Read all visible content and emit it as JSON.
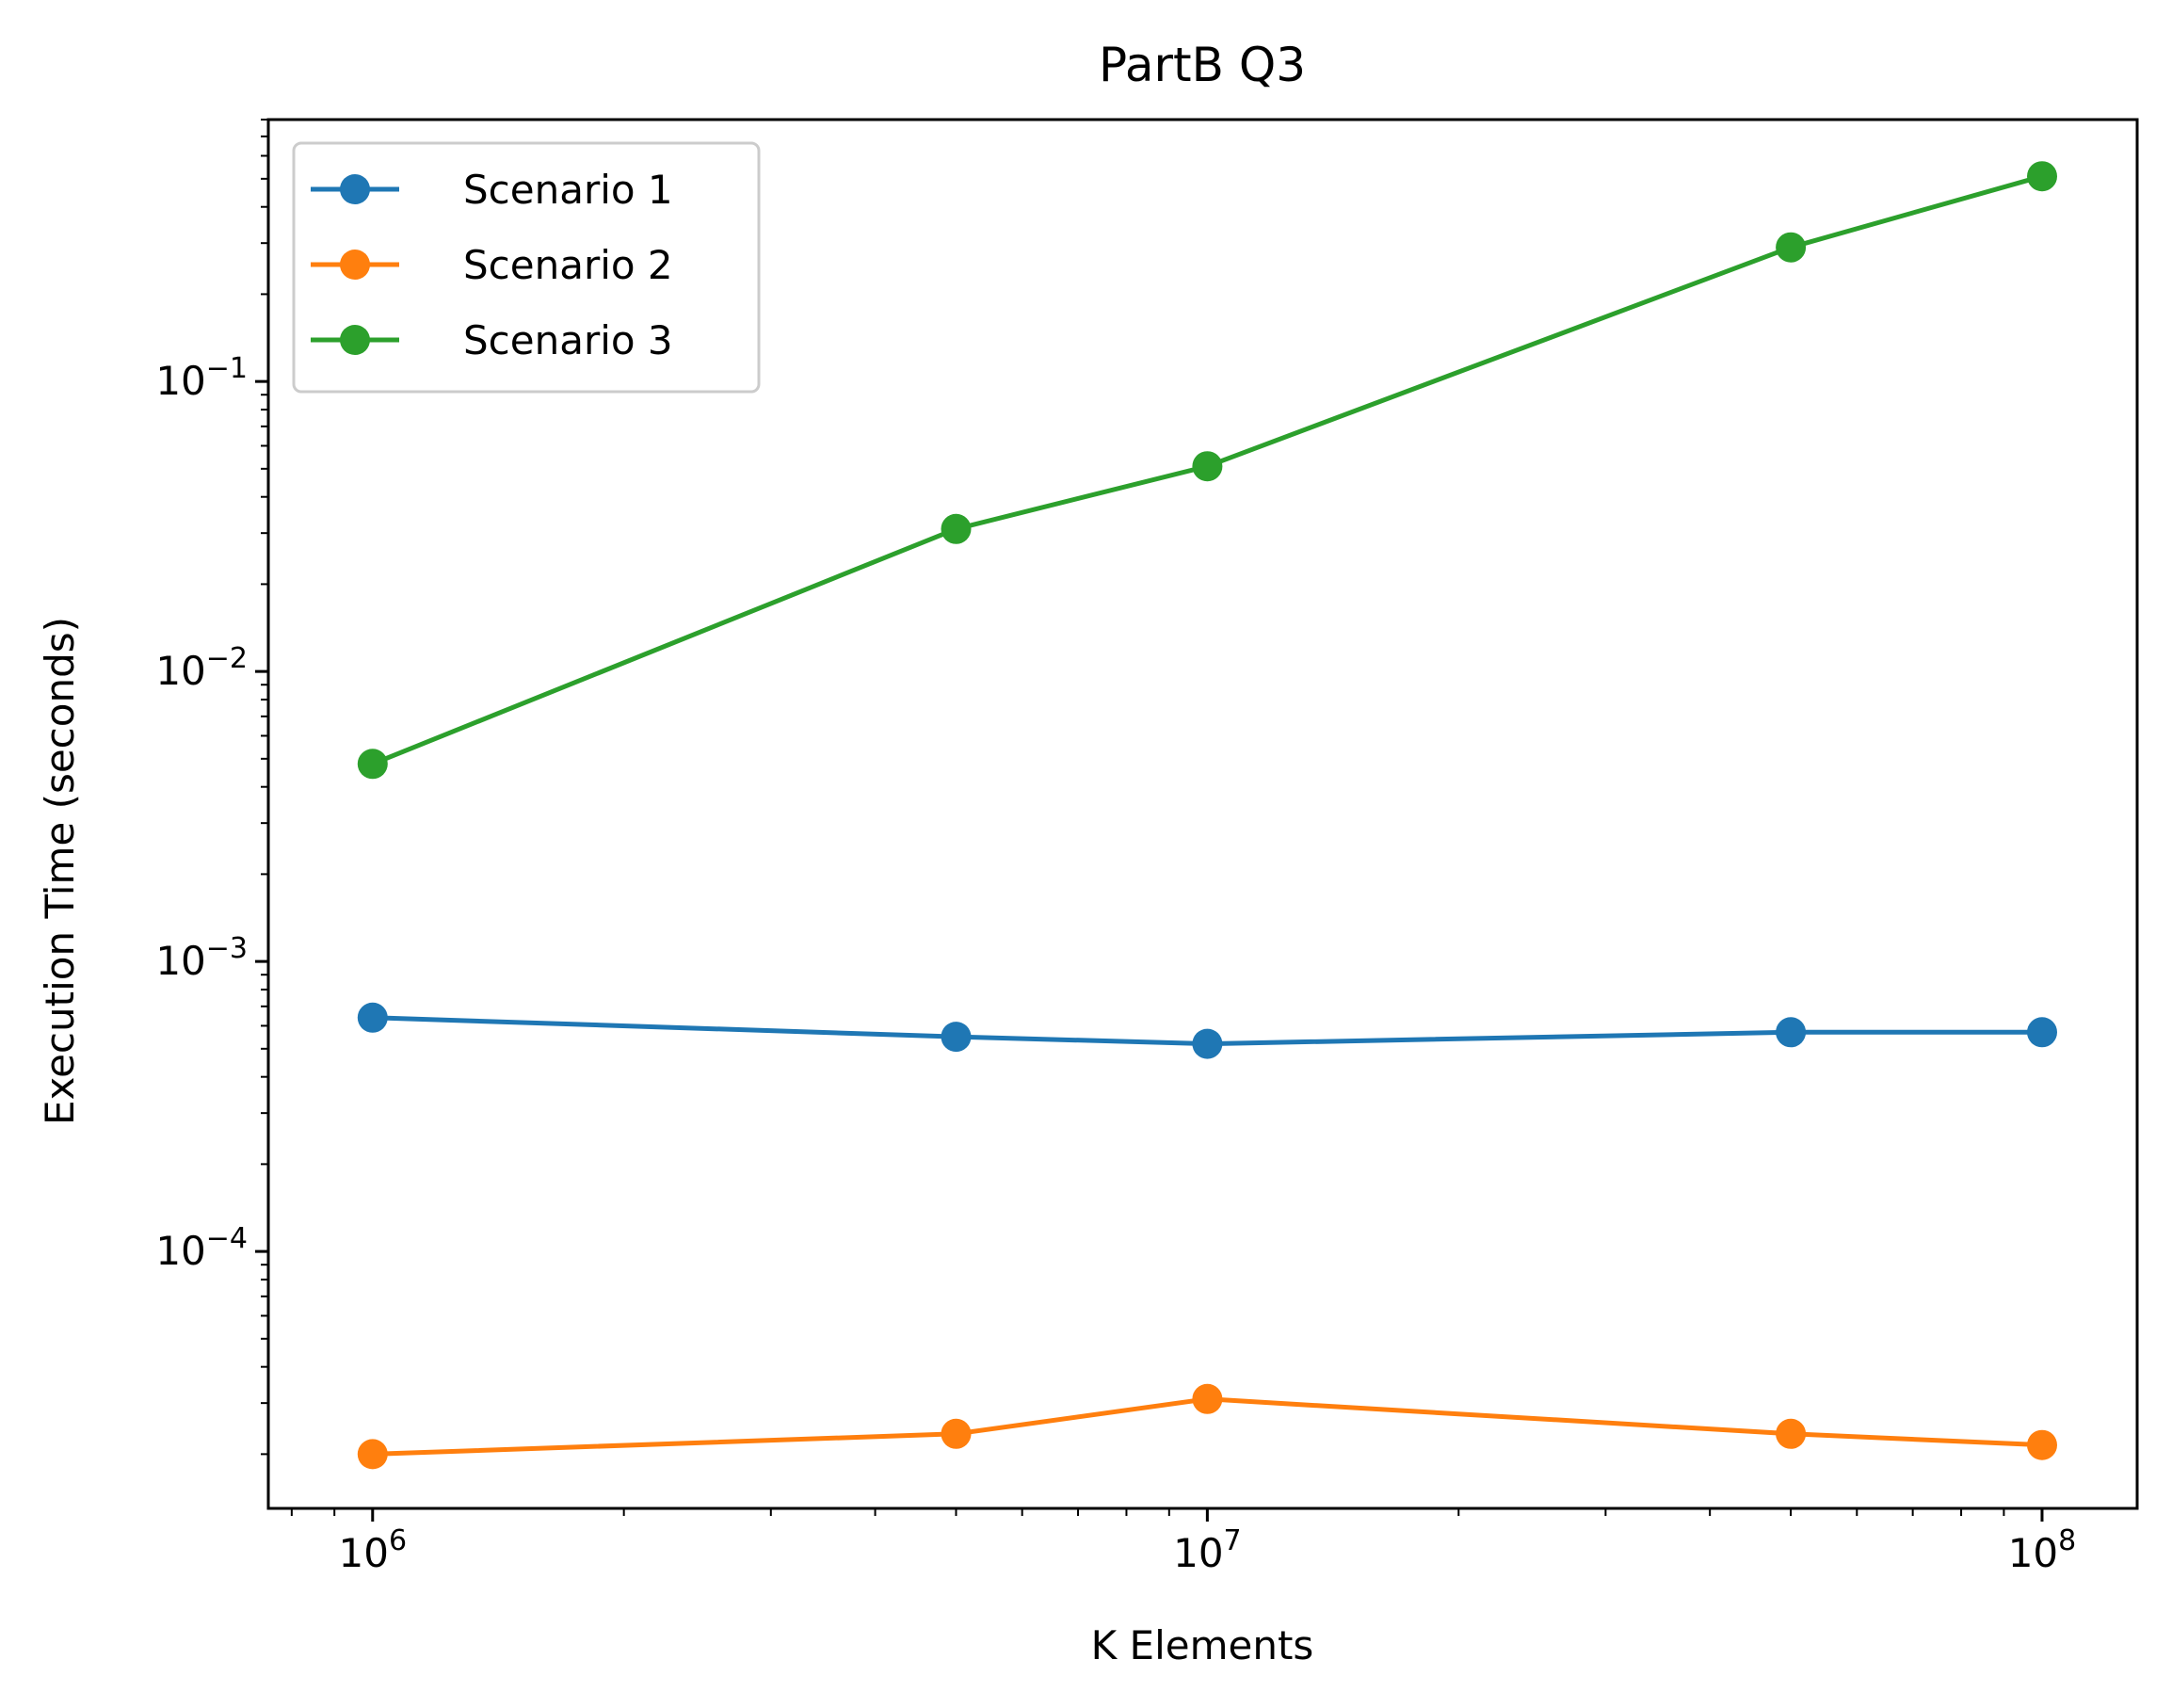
{
  "chart_data": {
    "type": "line",
    "title": "PartB Q3",
    "xlabel": "K Elements",
    "ylabel": "Execution Time (seconds)",
    "xscale": "log",
    "yscale": "log",
    "xlim": [
      750000,
      130000000
    ],
    "ylim": [
      1.3e-05,
      0.8
    ],
    "x": [
      1000000,
      5000000,
      10000000,
      50000000,
      100000000
    ],
    "x_tick_labels": [
      {
        "value": 1000000,
        "base": "10",
        "exp": "6"
      },
      {
        "value": 10000000,
        "base": "10",
        "exp": "7"
      },
      {
        "value": 100000000,
        "base": "10",
        "exp": "8"
      }
    ],
    "y_tick_labels": [
      {
        "value": 0.0001,
        "base": "10",
        "exp": "−4"
      },
      {
        "value": 0.001,
        "base": "10",
        "exp": "−3"
      },
      {
        "value": 0.01,
        "base": "10",
        "exp": "−2"
      },
      {
        "value": 0.1,
        "base": "10",
        "exp": "−1"
      }
    ],
    "series": [
      {
        "name": "Scenario 1",
        "color": "#1f77b4",
        "values": [
          0.00064,
          0.00055,
          0.00052,
          0.00057,
          0.00057
        ]
      },
      {
        "name": "Scenario 2",
        "color": "#ff7f0e",
        "values": [
          2e-05,
          2.35e-05,
          3.1e-05,
          2.35e-05,
          2.15e-05
        ]
      },
      {
        "name": "Scenario 3",
        "color": "#2ca02c",
        "values": [
          0.0048,
          0.031,
          0.051,
          0.29,
          0.51
        ]
      }
    ],
    "legend": {
      "placement": "upper-left"
    },
    "grid": false,
    "markers": "circle"
  }
}
